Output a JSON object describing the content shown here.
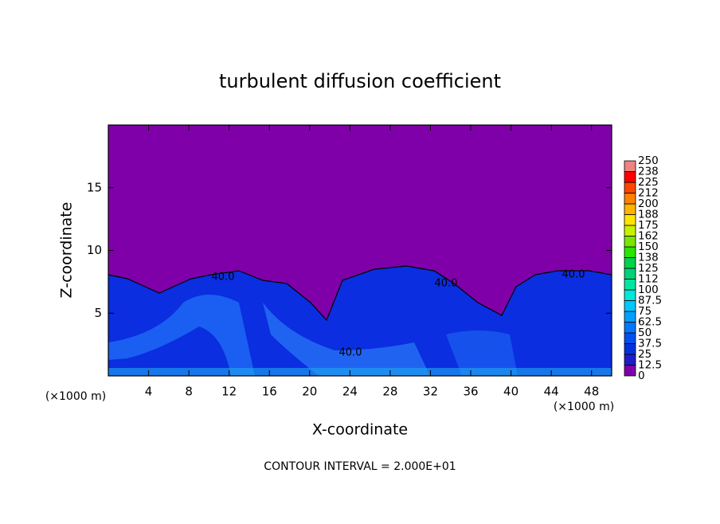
{
  "chart_data": {
    "type": "contour",
    "title": "turbulent diffusion coefficient",
    "xlabel": "X-coordinate",
    "ylabel": "Z-coordinate",
    "x_unit_label": "(×1000 m)",
    "footer": "CONTOUR INTERVAL = 2.000E+01",
    "xlim": [
      0,
      50
    ],
    "ylim": [
      0,
      20
    ],
    "xticks": [
      4,
      8,
      12,
      16,
      20,
      24,
      28,
      32,
      36,
      40,
      44,
      48
    ],
    "yticks": [
      5,
      10,
      15
    ],
    "background_color": "#7f00a8",
    "colorbar": {
      "levels": [
        0,
        12.5,
        25,
        37.5,
        50,
        62.5,
        75,
        87.5,
        100,
        112,
        125,
        138,
        150,
        162,
        175,
        188,
        200,
        212,
        225,
        238,
        250
      ],
      "colors": [
        "#7f00a8",
        "#1e1ec8",
        "#0032dc",
        "#0050f0",
        "#0078ff",
        "#00a0ff",
        "#00c8ff",
        "#00e6dc",
        "#00e6a0",
        "#00d278",
        "#00d24b",
        "#28e600",
        "#78e600",
        "#c8f000",
        "#ffe600",
        "#ffb400",
        "#ff8200",
        "#ff4600",
        "#ff0000",
        "#f08282"
      ]
    },
    "annotations": [
      {
        "text": "40.0"
      },
      {
        "text": "40.0"
      },
      {
        "text": "40.0"
      },
      {
        "text": "40.0"
      }
    ]
  }
}
